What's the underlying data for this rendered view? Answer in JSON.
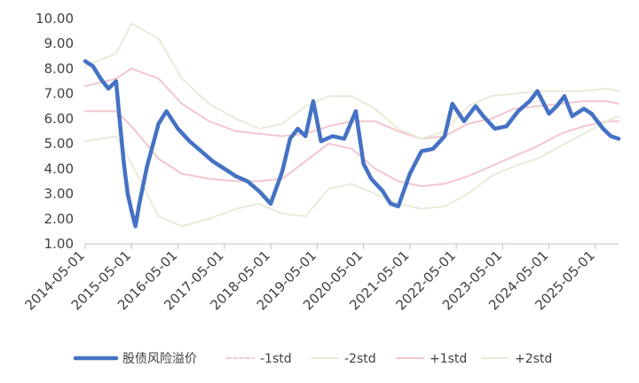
{
  "chart_data": {
    "type": "line",
    "title": "",
    "xlabel": "",
    "ylabel": "",
    "x_ticks": [
      "2014-05-01",
      "2015-05-01",
      "2016-05-01",
      "2017-05-01",
      "2018-05-01",
      "2019-05-01",
      "2020-05-01",
      "2021-05-01",
      "2022-05-01",
      "2023-05-01",
      "2024-05-01",
      "2025-05-01"
    ],
    "y_ticks": [
      "1.00",
      "2.00",
      "3.00",
      "4.00",
      "5.00",
      "6.00",
      "7.00",
      "8.00",
      "9.00",
      "10.00"
    ],
    "ylim": [
      1,
      10
    ],
    "xlim": [
      "2014-05-01",
      "2025-11-01"
    ],
    "grid": false,
    "legend_position": "bottom",
    "series": [
      {
        "name": "股债风险溢价",
        "color": "#4472c4",
        "x": [
          "2014-05",
          "2014-07",
          "2014-09",
          "2014-11",
          "2015-01",
          "2015-02",
          "2015-03",
          "2015-04",
          "2015-05",
          "2015-06",
          "2015-07",
          "2015-09",
          "2015-12",
          "2016-02",
          "2016-05",
          "2016-08",
          "2016-11",
          "2017-02",
          "2017-05",
          "2017-08",
          "2017-11",
          "2018-02",
          "2018-05",
          "2018-08",
          "2018-10",
          "2018-12",
          "2019-02",
          "2019-04",
          "2019-06",
          "2019-09",
          "2019-12",
          "2020-03",
          "2020-05",
          "2020-07",
          "2020-10",
          "2020-12",
          "2021-02",
          "2021-05",
          "2021-08",
          "2021-11",
          "2022-02",
          "2022-04",
          "2022-07",
          "2022-10",
          "2022-12",
          "2023-03",
          "2023-06",
          "2023-09",
          "2023-12",
          "2024-02",
          "2024-05",
          "2024-07",
          "2024-09",
          "2024-11",
          "2025-02",
          "2025-04",
          "2025-07",
          "2025-09",
          "2025-11"
        ],
        "y": [
          8.3,
          8.1,
          7.6,
          7.2,
          7.5,
          5.8,
          4.2,
          3.0,
          2.3,
          1.7,
          2.6,
          4.1,
          5.8,
          6.3,
          5.6,
          5.1,
          4.7,
          4.3,
          4.0,
          3.7,
          3.5,
          3.1,
          2.6,
          3.9,
          5.2,
          5.6,
          5.3,
          6.7,
          5.1,
          5.3,
          5.2,
          6.3,
          4.2,
          3.6,
          3.1,
          2.6,
          2.5,
          3.8,
          4.7,
          4.8,
          5.3,
          6.6,
          5.9,
          6.5,
          6.1,
          5.6,
          5.7,
          6.3,
          6.7,
          7.1,
          6.2,
          6.5,
          6.9,
          6.1,
          6.4,
          6.2,
          5.6,
          5.3,
          5.2
        ]
      },
      {
        "name": "-1std",
        "color": "#f2c6cf",
        "x": [
          "2014-05",
          "2015-01",
          "2015-05",
          "2015-12",
          "2016-06",
          "2017-01",
          "2017-08",
          "2018-02",
          "2018-08",
          "2019-02",
          "2019-08",
          "2020-02",
          "2020-08",
          "2021-02",
          "2021-08",
          "2022-02",
          "2022-08",
          "2023-02",
          "2023-08",
          "2024-02",
          "2024-08",
          "2025-02",
          "2025-08",
          "2025-11"
        ],
        "y": [
          6.3,
          6.3,
          5.7,
          4.4,
          3.8,
          3.6,
          3.5,
          3.5,
          3.6,
          4.3,
          5.0,
          4.8,
          4.0,
          3.5,
          3.3,
          3.4,
          3.7,
          4.1,
          4.5,
          4.9,
          5.4,
          5.7,
          5.9,
          5.9
        ]
      },
      {
        "name": "-2std",
        "color": "#e6ecd8",
        "x": [
          "2014-05",
          "2015-01",
          "2015-05",
          "2015-12",
          "2016-06",
          "2017-01",
          "2017-08",
          "2018-02",
          "2018-08",
          "2019-02",
          "2019-08",
          "2020-02",
          "2020-08",
          "2021-02",
          "2021-08",
          "2022-02",
          "2022-08",
          "2023-02",
          "2023-08",
          "2024-02",
          "2024-08",
          "2025-02",
          "2025-08",
          "2025-11"
        ],
        "y": [
          5.1,
          5.3,
          4.2,
          2.1,
          1.7,
          2.0,
          2.4,
          2.6,
          2.2,
          2.1,
          3.2,
          3.4,
          3.0,
          2.6,
          2.4,
          2.5,
          3.0,
          3.7,
          4.1,
          4.4,
          4.9,
          5.4,
          5.9,
          6.1
        ]
      },
      {
        "name": "+1std",
        "color": "#f2c6cf",
        "x": [
          "2014-05",
          "2015-01",
          "2015-05",
          "2015-12",
          "2016-06",
          "2017-01",
          "2017-08",
          "2018-02",
          "2018-08",
          "2019-02",
          "2019-08",
          "2020-02",
          "2020-08",
          "2021-02",
          "2021-08",
          "2022-02",
          "2022-08",
          "2023-02",
          "2023-08",
          "2024-02",
          "2024-08",
          "2025-02",
          "2025-08",
          "2025-11"
        ],
        "y": [
          7.3,
          7.6,
          8.0,
          7.6,
          6.6,
          5.9,
          5.5,
          5.4,
          5.3,
          5.4,
          5.7,
          5.9,
          5.9,
          5.5,
          5.2,
          5.3,
          5.8,
          6.0,
          6.4,
          6.5,
          6.6,
          6.7,
          6.7,
          6.6
        ]
      },
      {
        "name": "+2std",
        "color": "#e6ecd8",
        "x": [
          "2014-05",
          "2015-01",
          "2015-05",
          "2015-12",
          "2016-06",
          "2017-01",
          "2017-08",
          "2018-02",
          "2018-08",
          "2019-02",
          "2019-08",
          "2020-02",
          "2020-08",
          "2021-02",
          "2021-08",
          "2022-02",
          "2022-08",
          "2023-02",
          "2023-08",
          "2024-02",
          "2024-08",
          "2025-02",
          "2025-08",
          "2025-11"
        ],
        "y": [
          8.1,
          8.6,
          9.8,
          9.2,
          7.6,
          6.6,
          6.0,
          5.6,
          5.8,
          6.5,
          6.9,
          6.9,
          6.4,
          5.6,
          5.2,
          5.5,
          6.5,
          6.9,
          7.0,
          7.1,
          7.1,
          7.1,
          7.2,
          7.1
        ]
      }
    ]
  }
}
